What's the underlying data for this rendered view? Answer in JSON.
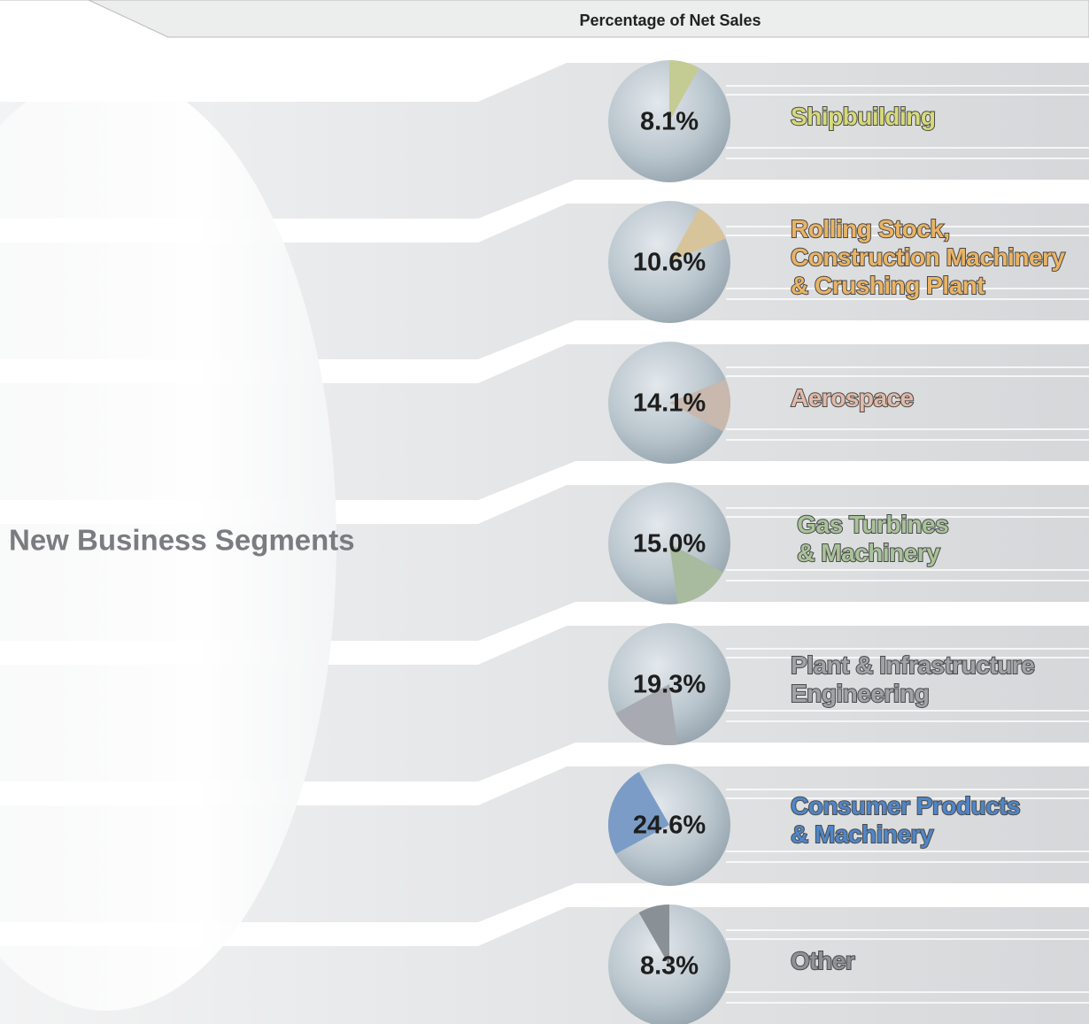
{
  "chart_data": {
    "type": "pie",
    "title": "Percentage of Net Sales",
    "subtitle": "New Business Segments",
    "categories": [
      "Shipbuilding",
      "Rolling Stock,\nConstruction Machinery\n& Crushing Plant",
      "Aerospace",
      " Gas Turbines\n & Machinery",
      "Plant & Infrastructure\nEngineering",
      "Consumer Products\n& Machinery",
      "Other"
    ],
    "values": [
      8.1,
      10.6,
      14.1,
      15.0,
      19.3,
      24.6,
      8.3
    ],
    "value_labels": [
      "8.1%",
      "10.6%",
      "14.1%",
      "15.0%",
      "19.3%",
      "24.6%",
      "8.3%"
    ],
    "colors": [
      "#c4cb93",
      "#d8c49a",
      "#c8b8ad",
      "#a8bb9e",
      "#a7aab0",
      "#7b9cc6",
      "#899096"
    ],
    "label_colors": [
      "#d6da78",
      "#eab464",
      "#e2baa8",
      "#a9c399",
      "#a0a2a8",
      "#4f86c8",
      "#8e9298"
    ]
  }
}
